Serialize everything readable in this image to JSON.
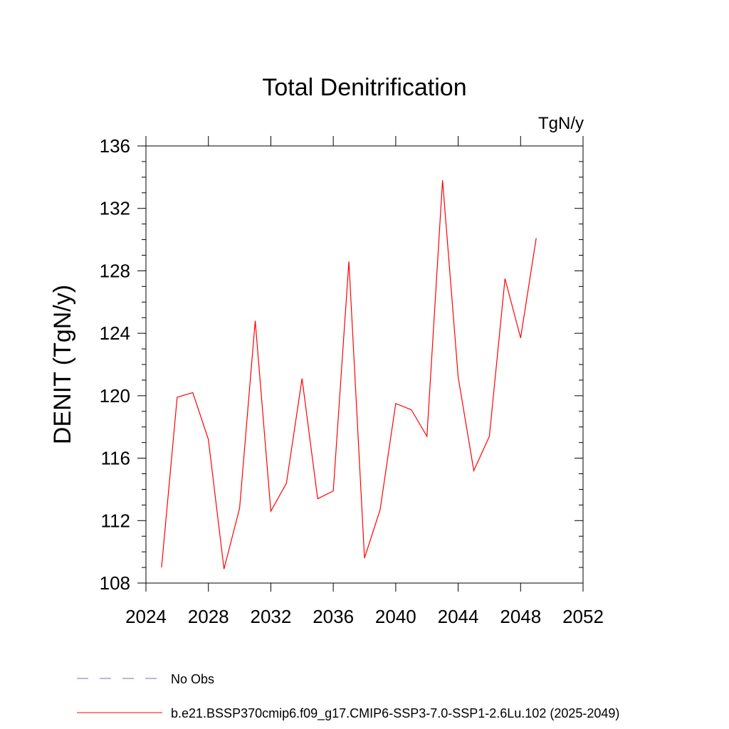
{
  "chart_data": {
    "type": "line",
    "title": "Total Denitrification",
    "units_label": "TgN/y",
    "ylabel": "DENIT  (TgN/y)",
    "xlabel": "",
    "xlim": [
      2024,
      2052
    ],
    "ylim": [
      108,
      136
    ],
    "x_ticks": [
      "2024",
      "2028",
      "2032",
      "2036",
      "2040",
      "2044",
      "2048",
      "2052"
    ],
    "y_ticks": [
      "108",
      "112",
      "116",
      "120",
      "124",
      "128",
      "132",
      "136"
    ],
    "grid": false,
    "legend_placement": "bottom",
    "x": [
      2025,
      2026,
      2027,
      2028,
      2029,
      2030,
      2031,
      2032,
      2033,
      2034,
      2035,
      2036,
      2037,
      2038,
      2039,
      2040,
      2041,
      2042,
      2043,
      2044,
      2045,
      2046,
      2047,
      2048,
      2049
    ],
    "series": [
      {
        "name": "b.e21.BSSP370cmip6.f09_g17.CMIP6-SSP3-7.0-SSP1-2.6Lu.102 (2025-2049)",
        "color": "#ff0000",
        "values": [
          109.0,
          119.9,
          120.2,
          117.2,
          108.9,
          112.8,
          124.8,
          112.6,
          114.4,
          121.1,
          113.4,
          113.9,
          128.6,
          109.6,
          112.7,
          119.5,
          119.1,
          117.4,
          133.8,
          121.2,
          115.2,
          117.4,
          127.5,
          123.7,
          130.1
        ]
      }
    ],
    "legend": [
      {
        "label": "No Obs",
        "style": "dashed",
        "color": "#7b68c8"
      },
      {
        "label": "b.e21.BSSP370cmip6.f09_g17.CMIP6-SSP3-7.0-SSP1-2.6Lu.102 (2025-2049)",
        "style": "solid",
        "color": "#ff0000"
      }
    ]
  }
}
